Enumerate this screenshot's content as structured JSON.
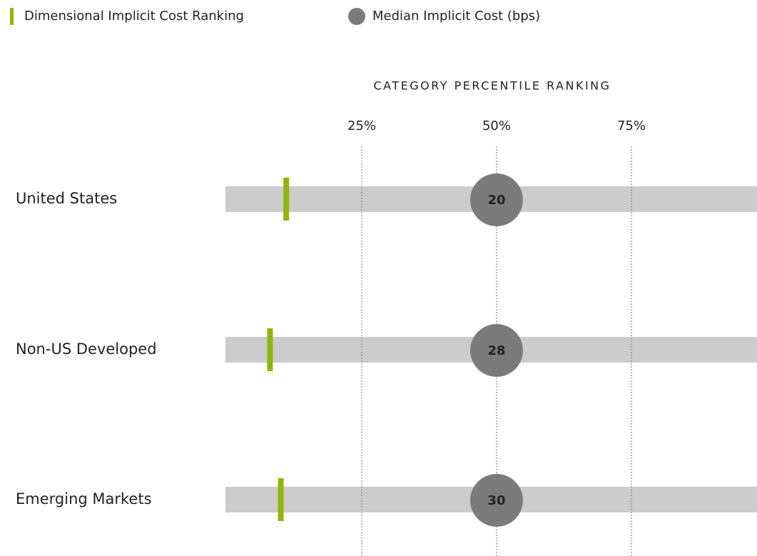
{
  "chart_data": {
    "type": "percentile_ranking",
    "axis_title": "CATEGORY PERCENTILE RANKING",
    "categories": [
      "United States",
      "Non-US Developed",
      "Emerging Markets"
    ],
    "series": [
      {
        "name": "Dimensional Implicit Cost Ranking",
        "color": "#91b50a",
        "values": [
          11,
          8,
          10
        ]
      },
      {
        "name": "Median Implicit Cost (bps)",
        "color": "#7b7b7b",
        "values": [
          20,
          28,
          30
        ],
        "percentile": [
          50,
          50,
          50
        ]
      }
    ],
    "xlim": [
      0,
      100
    ],
    "xticks": [
      {
        "value": 25,
        "label": "25%"
      },
      {
        "value": 50,
        "label": "50%"
      },
      {
        "value": 75,
        "label": "75%"
      }
    ],
    "grid": true,
    "track_color": "#cccccc"
  }
}
